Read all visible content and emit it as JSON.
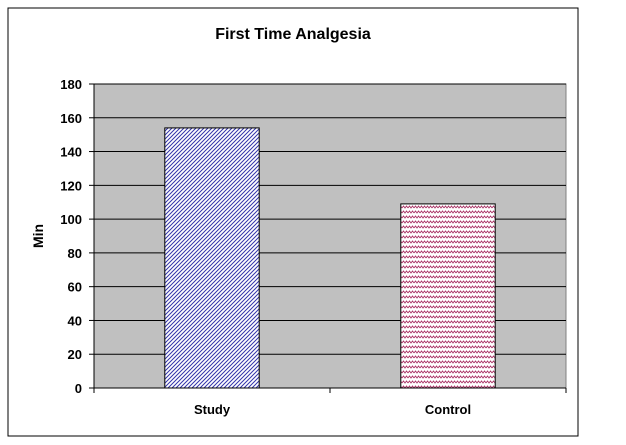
{
  "chart_data": {
    "type": "bar",
    "title": "First Time Analgesia",
    "xlabel": "",
    "ylabel": "Min",
    "categories": [
      "Study",
      "Control"
    ],
    "values": [
      154,
      109
    ],
    "ylim": [
      0,
      180
    ],
    "yticks": [
      0,
      20,
      40,
      60,
      80,
      100,
      120,
      140,
      160,
      180
    ],
    "grid": true,
    "legend": "none",
    "plot_background": "#c0c0c0",
    "bar_colors": [
      "#3333aa",
      "#aa3366"
    ],
    "bar_patterns": [
      "diagonal-stripes",
      "zigzag"
    ]
  }
}
